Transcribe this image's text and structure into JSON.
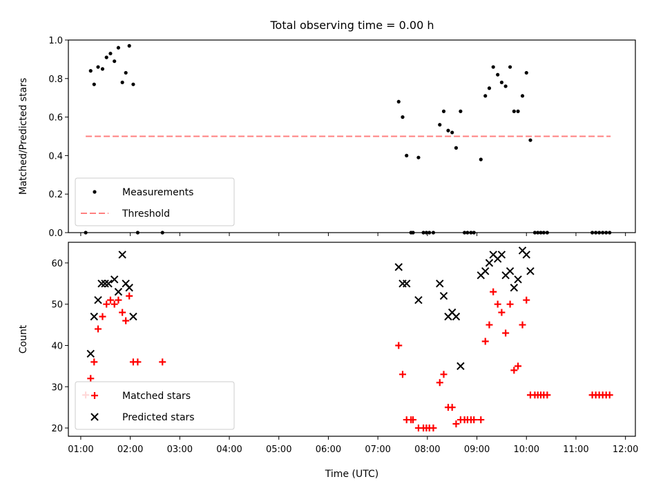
{
  "title": "Total observing time = 0.00 h",
  "chart_data": [
    {
      "type": "scatter",
      "ylabel": "Matched/Predicted stars",
      "xlim": [
        0.75,
        12.2
      ],
      "ylim": [
        0,
        1.0
      ],
      "yticks": [
        0.0,
        0.2,
        0.4,
        0.6,
        0.8,
        1.0
      ],
      "ytick_labels": [
        "0.0",
        "0.2",
        "0.4",
        "0.6",
        "0.8",
        "1.0"
      ],
      "legend_position": "lower-left",
      "series": [
        {
          "name": "Measurements",
          "marker": "dot",
          "color": "#000000",
          "points": [
            [
              1.1,
              0.0
            ],
            [
              1.2,
              0.84
            ],
            [
              1.27,
              0.77
            ],
            [
              1.35,
              0.86
            ],
            [
              1.44,
              0.85
            ],
            [
              1.52,
              0.91
            ],
            [
              1.6,
              0.93
            ],
            [
              1.68,
              0.89
            ],
            [
              1.76,
              0.96
            ],
            [
              1.84,
              0.78
            ],
            [
              1.91,
              0.83
            ],
            [
              1.98,
              0.97
            ],
            [
              2.06,
              0.77
            ],
            [
              2.15,
              0.0
            ],
            [
              2.65,
              0.0
            ],
            [
              7.42,
              0.68
            ],
            [
              7.5,
              0.6
            ],
            [
              7.58,
              0.4
            ],
            [
              7.67,
              0.0
            ],
            [
              7.71,
              0.0
            ],
            [
              7.82,
              0.39
            ],
            [
              7.92,
              0.0
            ],
            [
              7.98,
              0.0
            ],
            [
              8.04,
              0.0
            ],
            [
              8.12,
              0.0
            ],
            [
              8.25,
              0.56
            ],
            [
              8.33,
              0.63
            ],
            [
              8.42,
              0.53
            ],
            [
              8.5,
              0.52
            ],
            [
              8.58,
              0.44
            ],
            [
              8.67,
              0.63
            ],
            [
              8.75,
              0.0
            ],
            [
              8.81,
              0.0
            ],
            [
              8.88,
              0.0
            ],
            [
              8.94,
              0.0
            ],
            [
              9.08,
              0.38
            ],
            [
              9.17,
              0.71
            ],
            [
              9.25,
              0.75
            ],
            [
              9.33,
              0.86
            ],
            [
              9.42,
              0.82
            ],
            [
              9.5,
              0.78
            ],
            [
              9.58,
              0.76
            ],
            [
              9.67,
              0.86
            ],
            [
              9.75,
              0.63
            ],
            [
              9.83,
              0.63
            ],
            [
              9.92,
              0.71
            ],
            [
              10.0,
              0.83
            ],
            [
              10.08,
              0.48
            ],
            [
              10.17,
              0.0
            ],
            [
              10.23,
              0.0
            ],
            [
              10.29,
              0.0
            ],
            [
              10.35,
              0.0
            ],
            [
              10.42,
              0.0
            ],
            [
              11.33,
              0.0
            ],
            [
              11.4,
              0.0
            ],
            [
              11.47,
              0.0
            ],
            [
              11.54,
              0.0
            ],
            [
              11.61,
              0.0
            ],
            [
              11.68,
              0.0
            ]
          ]
        },
        {
          "name": "Threshold",
          "type": "line",
          "style": "dashed",
          "color": "#ff7f7f",
          "x": [
            1.1,
            11.7
          ],
          "values": [
            0.5,
            0.5
          ]
        }
      ]
    },
    {
      "type": "scatter",
      "ylabel": "Count",
      "xlabel": "Time (UTC)",
      "xlim": [
        0.75,
        12.2
      ],
      "ylim": [
        18,
        65
      ],
      "yticks": [
        20,
        30,
        40,
        50,
        60
      ],
      "ytick_labels": [
        "20",
        "30",
        "40",
        "50",
        "60"
      ],
      "xticks": [
        1,
        2,
        3,
        4,
        5,
        6,
        7,
        8,
        9,
        10,
        11,
        12
      ],
      "xtick_labels": [
        "01:00",
        "02:00",
        "03:00",
        "04:00",
        "05:00",
        "06:00",
        "07:00",
        "08:00",
        "09:00",
        "10:00",
        "11:00",
        "12:00"
      ],
      "legend_position": "lower-left",
      "series": [
        {
          "name": "Matched stars",
          "marker": "plus",
          "color": "#ff0000",
          "points": [
            [
              1.1,
              28
            ],
            [
              1.2,
              32
            ],
            [
              1.27,
              36
            ],
            [
              1.35,
              44
            ],
            [
              1.44,
              47
            ],
            [
              1.52,
              50
            ],
            [
              1.6,
              51
            ],
            [
              1.68,
              50
            ],
            [
              1.76,
              51
            ],
            [
              1.84,
              48
            ],
            [
              1.91,
              46
            ],
            [
              1.98,
              52
            ],
            [
              2.06,
              36
            ],
            [
              2.15,
              36
            ],
            [
              2.65,
              36
            ],
            [
              7.42,
              40
            ],
            [
              7.5,
              33
            ],
            [
              7.58,
              22
            ],
            [
              7.67,
              22
            ],
            [
              7.71,
              22
            ],
            [
              7.82,
              20
            ],
            [
              7.92,
              20
            ],
            [
              7.98,
              20
            ],
            [
              8.04,
              20
            ],
            [
              8.12,
              20
            ],
            [
              8.25,
              31
            ],
            [
              8.33,
              33
            ],
            [
              8.42,
              25
            ],
            [
              8.5,
              25
            ],
            [
              8.58,
              21
            ],
            [
              8.67,
              22
            ],
            [
              8.75,
              22
            ],
            [
              8.81,
              22
            ],
            [
              8.88,
              22
            ],
            [
              8.94,
              22
            ],
            [
              9.08,
              22
            ],
            [
              9.17,
              41
            ],
            [
              9.25,
              45
            ],
            [
              9.33,
              53
            ],
            [
              9.42,
              50
            ],
            [
              9.5,
              48
            ],
            [
              9.58,
              43
            ],
            [
              9.67,
              50
            ],
            [
              9.75,
              34
            ],
            [
              9.83,
              35
            ],
            [
              9.92,
              45
            ],
            [
              10.0,
              51
            ],
            [
              10.08,
              28
            ],
            [
              10.17,
              28
            ],
            [
              10.23,
              28
            ],
            [
              10.29,
              28
            ],
            [
              10.35,
              28
            ],
            [
              10.42,
              28
            ],
            [
              11.33,
              28
            ],
            [
              11.4,
              28
            ],
            [
              11.47,
              28
            ],
            [
              11.54,
              28
            ],
            [
              11.61,
              28
            ],
            [
              11.68,
              28
            ]
          ]
        },
        {
          "name": "Predicted stars",
          "marker": "x",
          "color": "#000000",
          "points": [
            [
              1.2,
              38
            ],
            [
              1.27,
              47
            ],
            [
              1.35,
              51
            ],
            [
              1.42,
              55
            ],
            [
              1.49,
              55
            ],
            [
              1.56,
              55
            ],
            [
              1.68,
              56
            ],
            [
              1.76,
              53
            ],
            [
              1.84,
              62
            ],
            [
              1.91,
              55
            ],
            [
              1.98,
              54
            ],
            [
              2.06,
              47
            ],
            [
              7.42,
              59
            ],
            [
              7.5,
              55
            ],
            [
              7.58,
              55
            ],
            [
              7.82,
              51
            ],
            [
              8.25,
              55
            ],
            [
              8.33,
              52
            ],
            [
              8.42,
              47
            ],
            [
              8.5,
              48
            ],
            [
              8.58,
              47
            ],
            [
              8.67,
              35
            ],
            [
              9.08,
              57
            ],
            [
              9.17,
              58
            ],
            [
              9.25,
              60
            ],
            [
              9.33,
              62
            ],
            [
              9.42,
              61
            ],
            [
              9.5,
              62
            ],
            [
              9.58,
              57
            ],
            [
              9.67,
              58
            ],
            [
              9.75,
              54
            ],
            [
              9.83,
              56
            ],
            [
              9.92,
              63
            ],
            [
              10.0,
              62
            ],
            [
              10.08,
              58
            ]
          ]
        }
      ]
    }
  ]
}
